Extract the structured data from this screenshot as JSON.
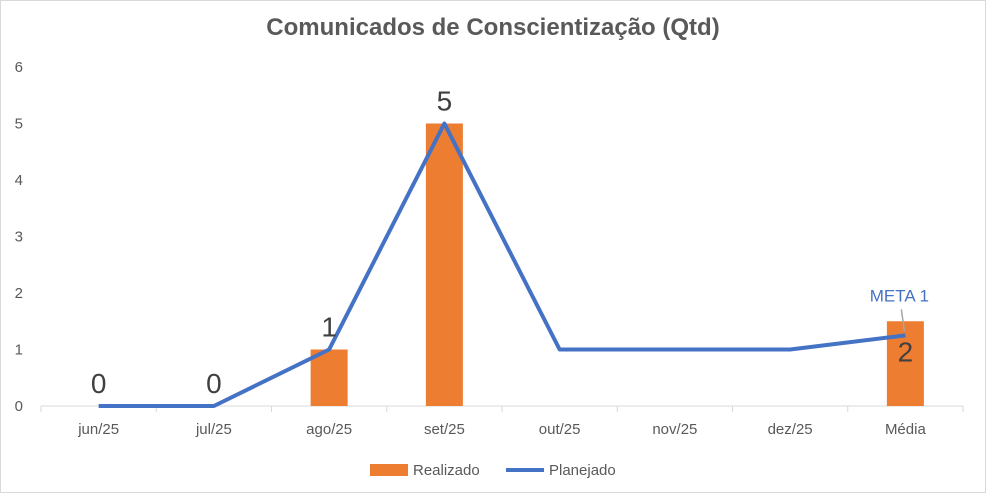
{
  "chart_data": {
    "type": "bar",
    "title": "Comunicados de Conscientização (Qtd)",
    "categories": [
      "jun/25",
      "jul/25",
      "ago/25",
      "set/25",
      "out/25",
      "nov/25",
      "dez/25",
      "Média"
    ],
    "ylim": [
      0,
      6
    ],
    "yticks": [
      0,
      1,
      2,
      3,
      4,
      5,
      6
    ],
    "gridlines": false,
    "legend_position": "bottom",
    "series": [
      {
        "name": "Realizado",
        "type": "bar",
        "color": "#ed7d31",
        "values": [
          0,
          0,
          1,
          5,
          null,
          null,
          null,
          1.5
        ],
        "data_labels": [
          "0",
          "0",
          "1",
          "5",
          "",
          "",
          "",
          "2"
        ]
      },
      {
        "name": "Planejado",
        "type": "line",
        "color": "#4472c4",
        "values": [
          0,
          0,
          1,
          5,
          1,
          1,
          1,
          1.25
        ]
      }
    ],
    "annotations": [
      {
        "text": "META 1",
        "category": "Média",
        "series": "Planejado"
      }
    ]
  }
}
